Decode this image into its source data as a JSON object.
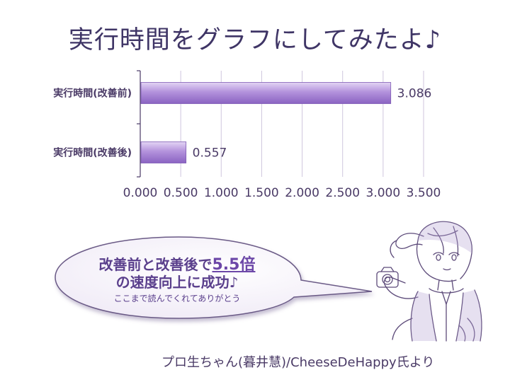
{
  "slide": {
    "title": "実行時間をグラフにしてみたよ♪",
    "credit": "プロ生ちゃん(暮井慧)/CheeseDeHappy氏より"
  },
  "callout": {
    "line1_prefix": "改善前と改善後で",
    "line1_emphasis": "5.5倍",
    "line2": "の速度向上に成功♪",
    "line3": "ここまで読んでくれてありがとう"
  },
  "colors": {
    "bar": "#9b76cc",
    "bar_light": "#e0d2f2",
    "text": "#4a3a66",
    "accent": "#6c47a8"
  },
  "chart_data": {
    "type": "bar",
    "orientation": "horizontal",
    "categories": [
      "実行時間(改善前)",
      "実行時間(改善後)"
    ],
    "values": [
      3.086,
      0.557
    ],
    "data_labels": [
      "3.086",
      "0.557"
    ],
    "x_ticks": [
      "0.000",
      "0.500",
      "1.000",
      "1.500",
      "2.000",
      "2.500",
      "3.000",
      "3.500"
    ],
    "xlim": [
      0,
      3.5
    ],
    "grid": true
  }
}
